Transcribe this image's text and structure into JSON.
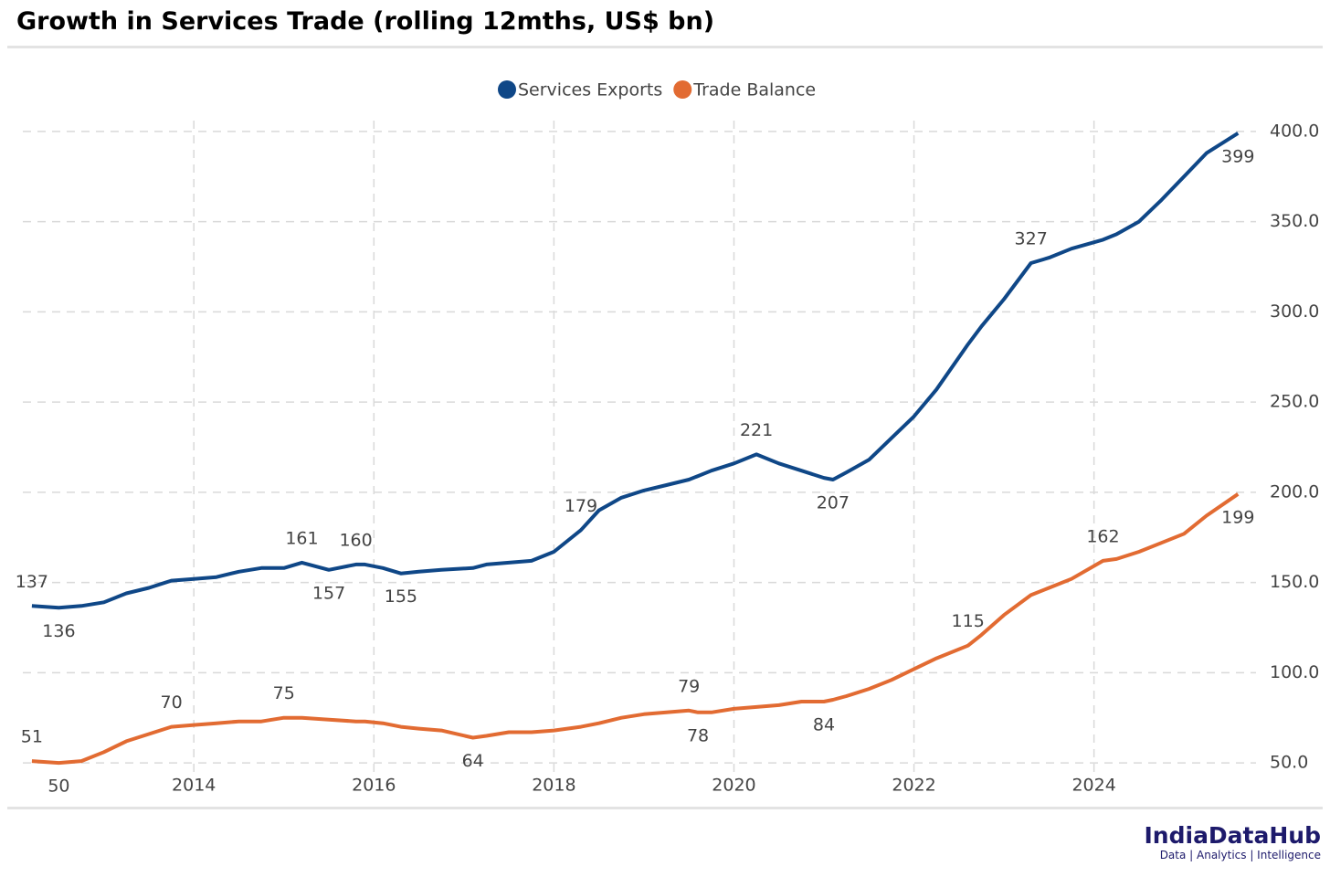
{
  "chart_data": {
    "type": "line",
    "title": "Growth in Services Trade (rolling 12mths, US$ bn)",
    "brand": {
      "name": "IndiaDataHub",
      "tagline": "Data | Analytics | Intelligence"
    },
    "x": [
      2012.2,
      2012.5,
      2012.75,
      2013.0,
      2013.25,
      2013.5,
      2013.75,
      2014.0,
      2014.25,
      2014.5,
      2014.75,
      2015.0,
      2015.2,
      2015.5,
      2015.8,
      2015.9,
      2016.1,
      2016.3,
      2016.5,
      2016.75,
      2017.1,
      2017.25,
      2017.5,
      2017.75,
      2018.0,
      2018.3,
      2018.5,
      2018.75,
      2019.0,
      2019.25,
      2019.5,
      2019.6,
      2019.75,
      2020.0,
      2020.25,
      2020.5,
      2020.75,
      2021.0,
      2021.1,
      2021.25,
      2021.5,
      2021.75,
      2022.0,
      2022.25,
      2022.6,
      2022.75,
      2023.0,
      2023.3,
      2023.5,
      2023.75,
      2024.1,
      2024.25,
      2024.5,
      2024.75,
      2025.0,
      2025.25,
      2025.6
    ],
    "series": [
      {
        "name": "Services Exports",
        "color": "#0f4787",
        "values": [
          137,
          136,
          137,
          139,
          144,
          147,
          151,
          152,
          153,
          156,
          158,
          158,
          161,
          157,
          160,
          160,
          158,
          155,
          156,
          157,
          158,
          160,
          161,
          162,
          167,
          179,
          190,
          197,
          201,
          204,
          207,
          209,
          212,
          216,
          221,
          216,
          212,
          208,
          207,
          211,
          218,
          230,
          242,
          257,
          282,
          292,
          307,
          327,
          330,
          335,
          340,
          343,
          350,
          362,
          375,
          388,
          399
        ],
        "value_labels": [
          "137",
          "136",
          null,
          null,
          null,
          null,
          null,
          null,
          null,
          null,
          null,
          null,
          "161",
          "157",
          "160",
          null,
          null,
          "155",
          null,
          null,
          null,
          null,
          null,
          null,
          null,
          "179",
          null,
          null,
          null,
          null,
          null,
          null,
          null,
          null,
          "221",
          null,
          null,
          null,
          "207",
          null,
          null,
          null,
          null,
          null,
          null,
          null,
          null,
          "327",
          null,
          null,
          null,
          null,
          null,
          null,
          null,
          null,
          "399"
        ]
      },
      {
        "name": "Trade Balance",
        "color": "#e26b32",
        "values": [
          51,
          50,
          51,
          56,
          62,
          66,
          70,
          71,
          72,
          73,
          73,
          75,
          75,
          74,
          73,
          73,
          72,
          70,
          69,
          68,
          64,
          65,
          67,
          67,
          68,
          70,
          72,
          75,
          77,
          78,
          79,
          78,
          78,
          80,
          81,
          82,
          84,
          84,
          85,
          87,
          91,
          96,
          102,
          108,
          115,
          121,
          132,
          143,
          147,
          152,
          162,
          163,
          167,
          172,
          177,
          187,
          199
        ],
        "value_labels": [
          "51",
          "50",
          null,
          null,
          null,
          null,
          "70",
          null,
          null,
          null,
          null,
          "75",
          null,
          null,
          null,
          null,
          null,
          null,
          null,
          null,
          "64",
          null,
          null,
          null,
          null,
          null,
          null,
          null,
          null,
          null,
          "79",
          "78",
          null,
          null,
          null,
          null,
          null,
          "84",
          null,
          null,
          null,
          null,
          null,
          null,
          "115",
          null,
          null,
          null,
          null,
          null,
          "162",
          null,
          null,
          null,
          null,
          null,
          "199"
        ]
      }
    ],
    "xlim": [
      2012.1,
      2025.8
    ],
    "xticks": [
      2014,
      2016,
      2018,
      2020,
      2022,
      2024
    ],
    "ylim": [
      45,
      406
    ],
    "yticks": [
      {
        "value": 50,
        "label": "50.0"
      },
      {
        "value": 100,
        "label": "100.0"
      },
      {
        "value": 150,
        "label": "150.0"
      },
      {
        "value": 200,
        "label": "200.0"
      },
      {
        "value": 250,
        "label": "250.0"
      },
      {
        "value": 300,
        "label": "300.0"
      },
      {
        "value": 350,
        "label": "350.0"
      },
      {
        "value": 400,
        "label": "400.0"
      }
    ],
    "grid": true,
    "legend": "top"
  }
}
